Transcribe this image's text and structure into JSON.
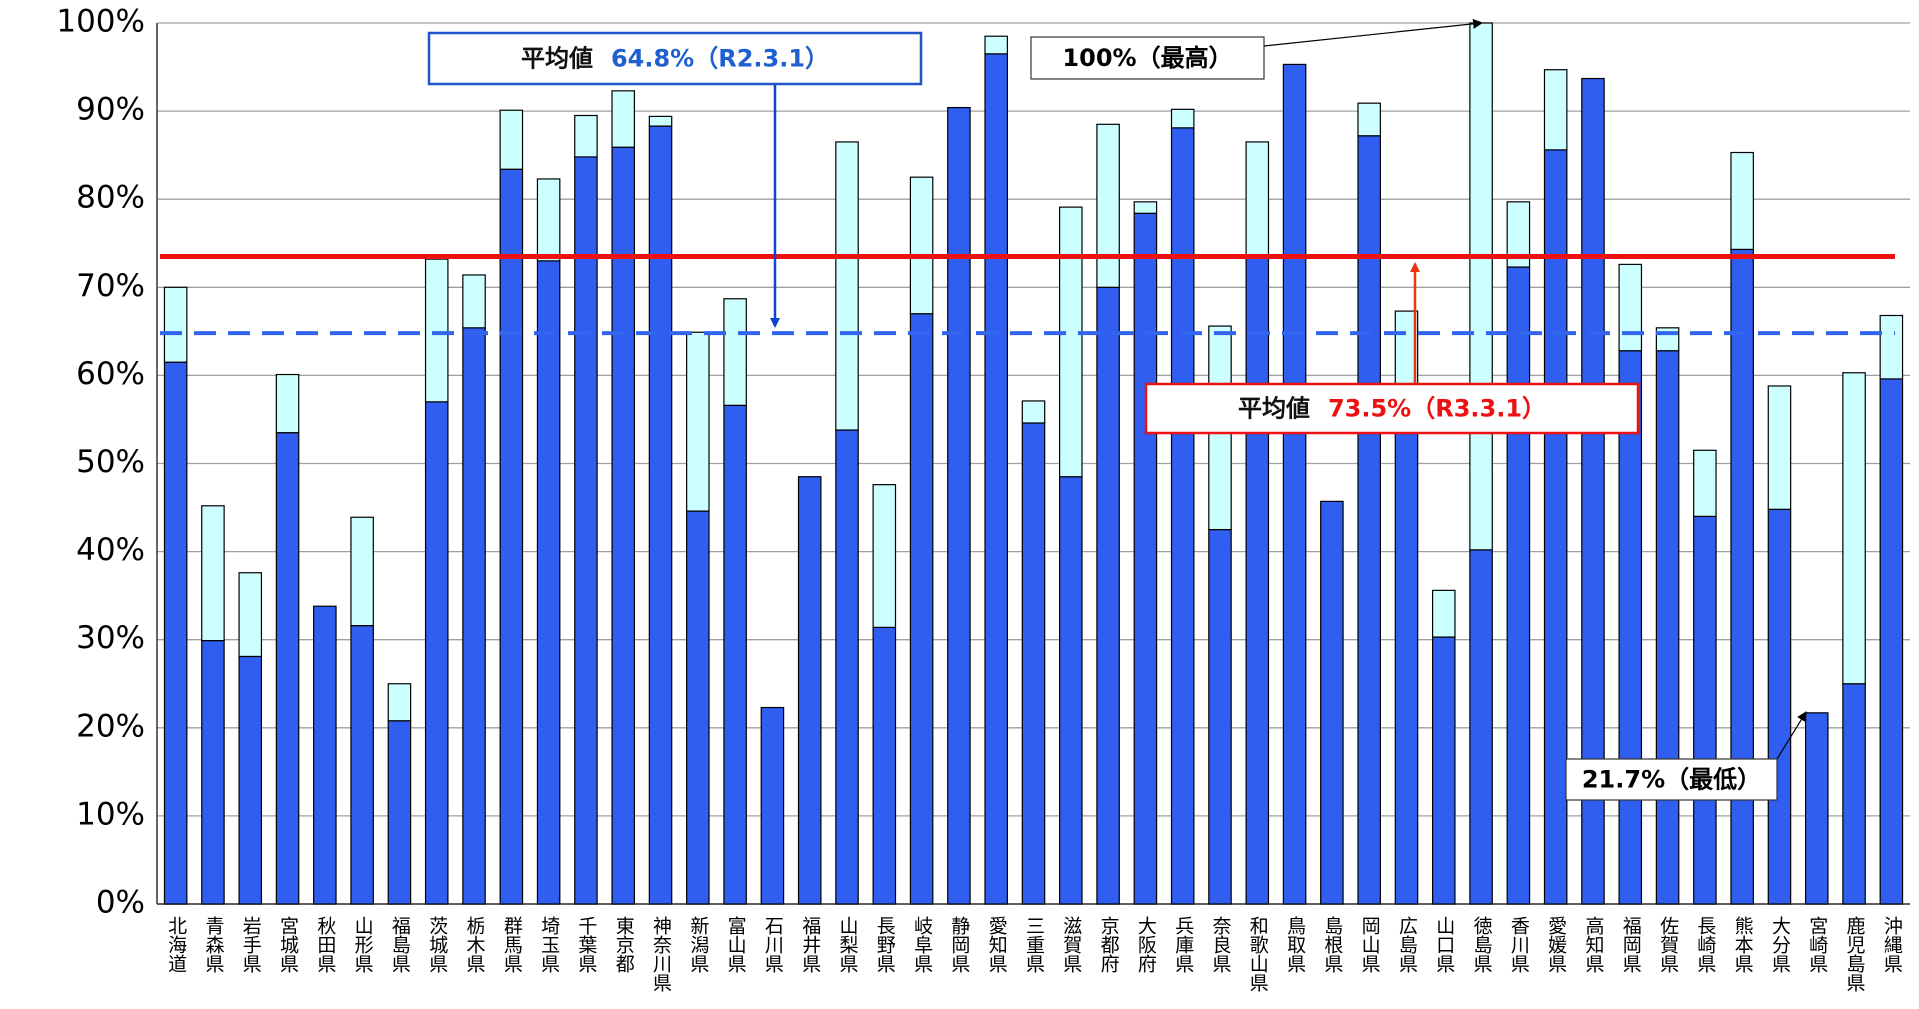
{
  "chart_data": {
    "type": "stacked_bar",
    "categories": [
      "北海道",
      "青森県",
      "岩手県",
      "宮城県",
      "秋田県",
      "山形県",
      "福島県",
      "茨城県",
      "栃木県",
      "群馬県",
      "埼玉県",
      "千葉県",
      "東京都",
      "神奈川県",
      "新潟県",
      "富山県",
      "石川県",
      "福井県",
      "山梨県",
      "長野県",
      "岐阜県",
      "静岡県",
      "愛知県",
      "三重県",
      "滋賀県",
      "京都府",
      "大阪府",
      "兵庫県",
      "奈良県",
      "和歌山県",
      "鳥取県",
      "島根県",
      "岡山県",
      "広島県",
      "山口県",
      "徳島県",
      "香川県",
      "愛媛県",
      "高知県",
      "福岡県",
      "佐賀県",
      "長崎県",
      "熊本県",
      "大分県",
      "宮崎県",
      "鹿児島県",
      "沖縄県"
    ],
    "series": [
      {
        "color": "#2f5ef0",
        "values": [
          61.5,
          29.9,
          28.1,
          53.5,
          33.8,
          31.6,
          20.8,
          57.0,
          65.4,
          83.4,
          73.0,
          84.8,
          85.9,
          88.3,
          44.6,
          56.6,
          22.3,
          48.5,
          53.8,
          31.4,
          67.0,
          90.4,
          96.5,
          54.6,
          48.5,
          70.0,
          78.4,
          88.1,
          42.5,
          73.3,
          95.3,
          45.7,
          87.2,
          54.0,
          30.3,
          40.2,
          72.3,
          85.6,
          93.7,
          62.8,
          62.8,
          44.0,
          74.3,
          44.8,
          21.7,
          25.0,
          59.6
        ]
      },
      {
        "color": "#ccffff",
        "values": [
          8.5,
          15.3,
          9.5,
          6.6,
          0,
          12.3,
          4.2,
          16.2,
          6.0,
          6.7,
          9.3,
          4.7,
          6.4,
          1.1,
          20.3,
          12.1,
          0,
          0,
          32.7,
          16.2,
          15.5,
          0,
          2.0,
          2.5,
          30.6,
          18.5,
          1.3,
          2.1,
          23.1,
          13.2,
          0,
          0,
          3.7,
          13.3,
          5.3,
          59.8,
          7.4,
          9.1,
          0,
          9.8,
          2.6,
          7.5,
          11.0,
          14.0,
          0,
          35.3,
          7.2
        ]
      }
    ],
    "ylim": [
      0,
      100
    ],
    "yticks": [
      {
        "value": 0,
        "label": "0%"
      },
      {
        "value": 10,
        "label": "10%"
      },
      {
        "value": 20,
        "label": "20%"
      },
      {
        "value": 30,
        "label": "30%"
      },
      {
        "value": 40,
        "label": "40%"
      },
      {
        "value": 50,
        "label": "50%"
      },
      {
        "value": 60,
        "label": "60%"
      },
      {
        "value": 70,
        "label": "70%"
      },
      {
        "value": 80,
        "label": "80%"
      },
      {
        "value": 90,
        "label": "90%"
      },
      {
        "value": 100,
        "label": "100%"
      }
    ],
    "grid": true,
    "reference_lines": [
      {
        "value": 64.8,
        "label": "平均値",
        "value_label": "64.8%（R2.3.1）",
        "color": "#3366ee",
        "style": "dashed"
      },
      {
        "value": 73.5,
        "label": "平均値",
        "value_label": "73.5%（R3.3.1）",
        "color": "#ee1111",
        "style": "solid"
      }
    ],
    "annotations": [
      {
        "text": "100%（最高）"
      },
      {
        "text": "21.7%（最低）"
      }
    ]
  }
}
